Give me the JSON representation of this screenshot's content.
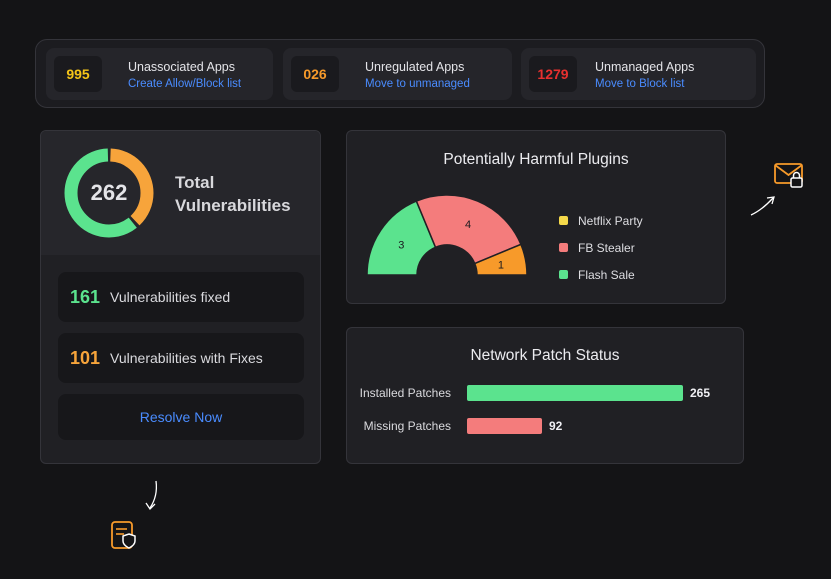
{
  "apps": [
    {
      "count": "995",
      "title": "Unassociated Apps",
      "link": "Create Allow/Block list",
      "color": "#f5c518"
    },
    {
      "count": "026",
      "title": "Unregulated Apps",
      "link": "Move to unmanaged",
      "color": "#f79a2a"
    },
    {
      "count": "1279",
      "title": "Unmanaged Apps",
      "link": "Move to Block list",
      "color": "#e8302f"
    }
  ],
  "vulnerabilities": {
    "total": "262",
    "title": "Total Vulnerabilities",
    "fixed_count": "161",
    "fixed_label": "Vulnerabilities fixed",
    "with_fixes_count": "101",
    "with_fixes_label": "Vulnerabilities with Fixes",
    "resolve_label": "Resolve Now",
    "colors": {
      "fixed": "#5be38e",
      "with_fixes": "#f7a43b"
    }
  },
  "plugins": {
    "title": "Potentially Harmful Plugins",
    "legend": [
      {
        "name": "Netflix Party",
        "color": "#f5d94a"
      },
      {
        "name": "FB Stealer",
        "color": "#f47c7c"
      },
      {
        "name": "Flash Sale",
        "color": "#5be38e"
      }
    ]
  },
  "patches": {
    "title": "Network Patch Status",
    "installed_label": "Installed Patches",
    "missing_label": "Missing Patches"
  },
  "chart_data": [
    {
      "type": "pie",
      "title": "Potentially Harmful Plugins",
      "categories": [
        "Flash Sale",
        "FB Stealer",
        "Netflix Party"
      ],
      "values": [
        3,
        4,
        1
      ],
      "colors": [
        "#5be38e",
        "#f47c7c",
        "#f79a2a"
      ],
      "legend": "right"
    },
    {
      "type": "bar",
      "title": "Network Patch Status",
      "categories": [
        "Installed Patches",
        "Missing Patches"
      ],
      "values": [
        265,
        92
      ],
      "colors": [
        "#5be38e",
        "#f47c7c"
      ],
      "orientation": "horizontal"
    }
  ]
}
